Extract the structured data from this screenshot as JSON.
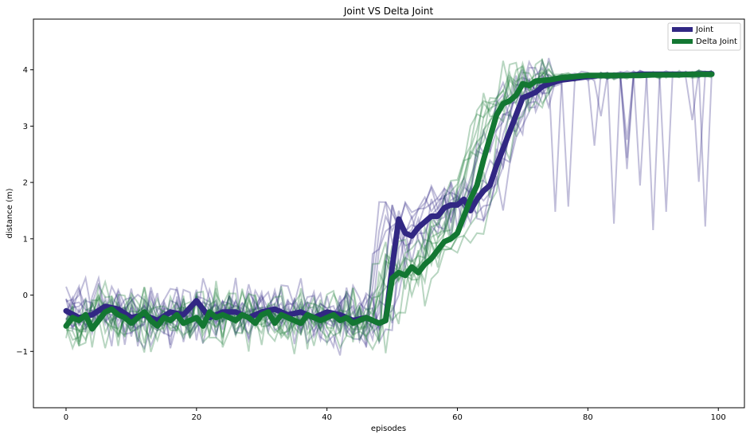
{
  "chart_data": {
    "type": "line",
    "title": "Joint VS Delta Joint",
    "xlabel": "episodes",
    "ylabel": "distance (m)",
    "xlim": [
      -5,
      104
    ],
    "ylim": [
      -2.0,
      4.9
    ],
    "xticks": [
      0,
      20,
      40,
      60,
      80,
      100
    ],
    "yticks": [
      -1,
      0,
      1,
      2,
      3,
      4
    ],
    "legend_position": "top-right",
    "grid": false,
    "individual_runs": {
      "count_per_series": 10,
      "opacity": 0.3,
      "note_visible": false
    },
    "series": [
      {
        "name": "Joint",
        "color": "#312783",
        "points": [
          [
            0,
            -0.28
          ],
          [
            2,
            -0.4
          ],
          [
            4,
            -0.35
          ],
          [
            6,
            -0.2
          ],
          [
            8,
            -0.25
          ],
          [
            10,
            -0.4
          ],
          [
            12,
            -0.35
          ],
          [
            14,
            -0.45
          ],
          [
            16,
            -0.3
          ],
          [
            18,
            -0.35
          ],
          [
            20,
            -0.1
          ],
          [
            22,
            -0.4
          ],
          [
            24,
            -0.3
          ],
          [
            26,
            -0.3
          ],
          [
            28,
            -0.4
          ],
          [
            30,
            -0.3
          ],
          [
            32,
            -0.25
          ],
          [
            34,
            -0.35
          ],
          [
            36,
            -0.3
          ],
          [
            38,
            -0.4
          ],
          [
            40,
            -0.3
          ],
          [
            42,
            -0.35
          ],
          [
            44,
            -0.45
          ],
          [
            46,
            -0.4
          ],
          [
            48,
            -0.5
          ],
          [
            49,
            -0.45
          ],
          [
            50,
            0.5
          ],
          [
            51,
            1.35
          ],
          [
            52,
            1.1
          ],
          [
            53,
            1.05
          ],
          [
            54,
            1.2
          ],
          [
            55,
            1.3
          ],
          [
            56,
            1.4
          ],
          [
            57,
            1.4
          ],
          [
            58,
            1.55
          ],
          [
            59,
            1.6
          ],
          [
            60,
            1.6
          ],
          [
            61,
            1.7
          ],
          [
            62,
            1.5
          ],
          [
            63,
            1.7
          ],
          [
            64,
            1.85
          ],
          [
            65,
            1.95
          ],
          [
            66,
            2.3
          ],
          [
            67,
            2.6
          ],
          [
            68,
            2.9
          ],
          [
            69,
            3.2
          ],
          [
            70,
            3.5
          ],
          [
            71,
            3.55
          ],
          [
            72,
            3.6
          ],
          [
            73,
            3.7
          ],
          [
            74,
            3.75
          ],
          [
            76,
            3.82
          ],
          [
            78,
            3.85
          ],
          [
            80,
            3.88
          ],
          [
            82,
            3.9
          ],
          [
            84,
            3.9
          ],
          [
            86,
            3.9
          ],
          [
            88,
            3.92
          ],
          [
            90,
            3.92
          ],
          [
            92,
            3.92
          ],
          [
            94,
            3.92
          ],
          [
            96,
            3.92
          ],
          [
            98,
            3.93
          ],
          [
            99,
            3.93
          ]
        ]
      },
      {
        "name": "Delta Joint",
        "color": "#137732",
        "points": [
          [
            0,
            -0.55
          ],
          [
            1,
            -0.4
          ],
          [
            2,
            -0.45
          ],
          [
            3,
            -0.35
          ],
          [
            4,
            -0.6
          ],
          [
            5,
            -0.45
          ],
          [
            6,
            -0.3
          ],
          [
            7,
            -0.25
          ],
          [
            8,
            -0.35
          ],
          [
            9,
            -0.4
          ],
          [
            10,
            -0.5
          ],
          [
            11,
            -0.4
          ],
          [
            12,
            -0.3
          ],
          [
            13,
            -0.45
          ],
          [
            14,
            -0.55
          ],
          [
            15,
            -0.4
          ],
          [
            16,
            -0.45
          ],
          [
            17,
            -0.35
          ],
          [
            18,
            -0.5
          ],
          [
            19,
            -0.45
          ],
          [
            20,
            -0.4
          ],
          [
            21,
            -0.55
          ],
          [
            22,
            -0.3
          ],
          [
            23,
            -0.4
          ],
          [
            24,
            -0.35
          ],
          [
            25,
            -0.4
          ],
          [
            26,
            -0.45
          ],
          [
            27,
            -0.35
          ],
          [
            28,
            -0.4
          ],
          [
            29,
            -0.5
          ],
          [
            30,
            -0.35
          ],
          [
            31,
            -0.3
          ],
          [
            32,
            -0.5
          ],
          [
            33,
            -0.35
          ],
          [
            34,
            -0.4
          ],
          [
            35,
            -0.45
          ],
          [
            36,
            -0.5
          ],
          [
            37,
            -0.35
          ],
          [
            38,
            -0.4
          ],
          [
            39,
            -0.45
          ],
          [
            40,
            -0.4
          ],
          [
            41,
            -0.35
          ],
          [
            42,
            -0.45
          ],
          [
            43,
            -0.4
          ],
          [
            44,
            -0.5
          ],
          [
            45,
            -0.45
          ],
          [
            46,
            -0.4
          ],
          [
            47,
            -0.45
          ],
          [
            48,
            -0.5
          ],
          [
            49,
            -0.45
          ],
          [
            50,
            0.3
          ],
          [
            51,
            0.4
          ],
          [
            52,
            0.35
          ],
          [
            53,
            0.5
          ],
          [
            54,
            0.4
          ],
          [
            55,
            0.55
          ],
          [
            56,
            0.65
          ],
          [
            57,
            0.8
          ],
          [
            58,
            0.95
          ],
          [
            59,
            1.0
          ],
          [
            60,
            1.1
          ],
          [
            61,
            1.4
          ],
          [
            62,
            1.7
          ],
          [
            63,
            1.95
          ],
          [
            64,
            2.4
          ],
          [
            65,
            2.8
          ],
          [
            66,
            3.2
          ],
          [
            67,
            3.4
          ],
          [
            68,
            3.45
          ],
          [
            69,
            3.55
          ],
          [
            70,
            3.75
          ],
          [
            71,
            3.72
          ],
          [
            72,
            3.8
          ],
          [
            74,
            3.82
          ],
          [
            76,
            3.86
          ],
          [
            78,
            3.88
          ],
          [
            80,
            3.9
          ],
          [
            82,
            3.9
          ],
          [
            84,
            3.9
          ],
          [
            86,
            3.9
          ],
          [
            88,
            3.9
          ],
          [
            90,
            3.91
          ],
          [
            92,
            3.91
          ],
          [
            94,
            3.91
          ],
          [
            96,
            3.92
          ],
          [
            98,
            3.92
          ],
          [
            99,
            3.92
          ]
        ]
      }
    ]
  }
}
